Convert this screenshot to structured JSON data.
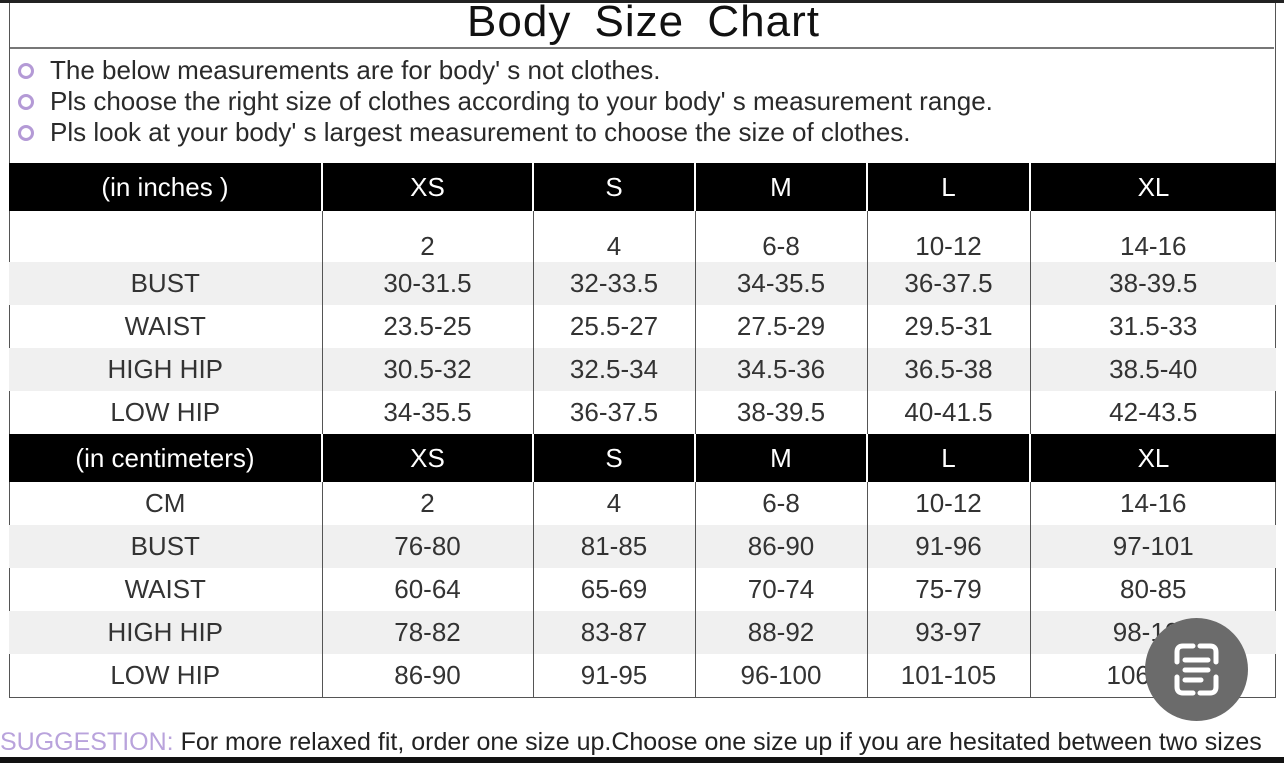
{
  "title": "Body  Size  Chart",
  "notes": [
    "The below measurements are for  body' s not clothes.",
    "Pls choose the right size of clothes according to your body' s  measurement range.",
    "Pls look  at your body' s  largest measurement to choose the size of clothes."
  ],
  "inches": {
    "header": [
      "(in  inches )",
      "XS",
      "S",
      "M",
      "L",
      "XL"
    ],
    "rows": [
      [
        "",
        "2",
        "4",
        "6-8",
        "10-12",
        "14-16"
      ],
      [
        "BUST",
        "30-31.5",
        "32-33.5",
        "34-35.5",
        "36-37.5",
        "38-39.5"
      ],
      [
        "WAIST",
        "23.5-25",
        "25.5-27",
        "27.5-29",
        "29.5-31",
        "31.5-33"
      ],
      [
        "HIGH HIP",
        "30.5-32",
        "32.5-34",
        "34.5-36",
        "36.5-38",
        "38.5-40"
      ],
      [
        "LOW HIP",
        "34-35.5",
        "36-37.5",
        "38-39.5",
        "40-41.5",
        "42-43.5"
      ]
    ]
  },
  "centimeters": {
    "header": [
      "(in centimeters)",
      "XS",
      "S",
      "M",
      "L",
      "XL"
    ],
    "rows": [
      [
        "CM",
        "2",
        "4",
        "6-8",
        "10-12",
        "14-16"
      ],
      [
        "BUST",
        "76-80",
        "81-85",
        "86-90",
        "91-96",
        "97-101"
      ],
      [
        "WAIST",
        "60-64",
        "65-69",
        "70-74",
        "75-79",
        "80-85"
      ],
      [
        "HIGH HIP",
        "78-82",
        "83-87",
        "88-92",
        "93-97",
        "98-102"
      ],
      [
        "LOW HIP",
        "86-90",
        "91-95",
        "96-100",
        "101-105",
        "106-110"
      ]
    ]
  },
  "suggestion": {
    "label": "SUGGESTION:",
    "text": " For more relaxed fit, order one size up.Choose one size up if you are hesitated between two sizes"
  },
  "floating_button": {
    "icon": "text-scan-icon"
  },
  "colors": {
    "bullet": "#b49ad6",
    "header_bg": "#000000",
    "suggestion_label": "#b9a3dc"
  }
}
